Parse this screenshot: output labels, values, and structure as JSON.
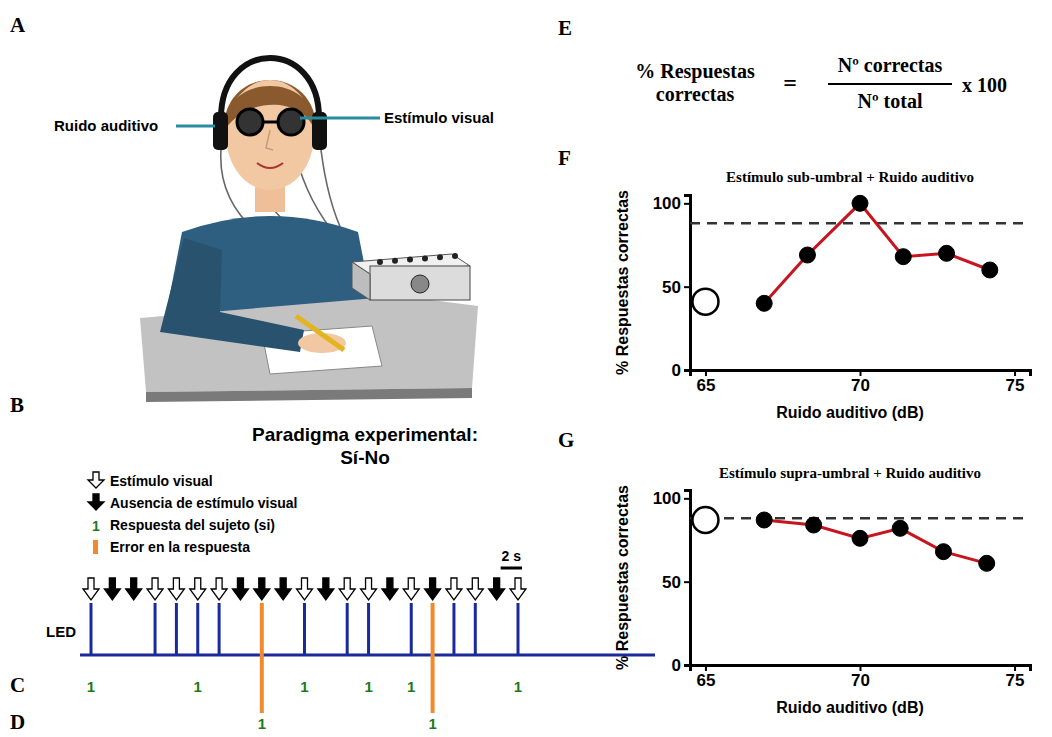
{
  "figure": {
    "letters": [
      "A",
      "B",
      "C",
      "D",
      "E",
      "F",
      "G"
    ],
    "illustration": {
      "noise_label": "Ruido auditivo",
      "stimulus_label": "Estímulo visual"
    },
    "paradigm": {
      "title": [
        "Paradigma experimental:",
        "Sí-No"
      ],
      "legend": {
        "stimulus": "Estímulo visual",
        "absence": "Ausencia de estímulo visual",
        "response_symbol": "1",
        "response": "Respuesta del sujeto (si)",
        "error": "Error en la respuesta"
      },
      "scale_bar": {
        "value": 2,
        "label": "2 s"
      },
      "trial_interval": 2,
      "led_label": "LED",
      "trials": [
        {
          "stimulus": true,
          "response": "1"
        },
        {
          "stimulus": false
        },
        {
          "stimulus": false
        },
        {
          "stimulus": true
        },
        {
          "stimulus": true
        },
        {
          "stimulus": true,
          "response": "1"
        },
        {
          "stimulus": true
        },
        {
          "stimulus": false
        },
        {
          "stimulus": false,
          "response": "1",
          "error": true
        },
        {
          "stimulus": false
        },
        {
          "stimulus": true,
          "response": "1"
        },
        {
          "stimulus": false
        },
        {
          "stimulus": true
        },
        {
          "stimulus": true,
          "response": "1"
        },
        {
          "stimulus": false
        },
        {
          "stimulus": true,
          "response": "1"
        },
        {
          "stimulus": false,
          "response": "1",
          "error": true
        },
        {
          "stimulus": true
        },
        {
          "stimulus": true
        },
        {
          "stimulus": false
        },
        {
          "stimulus": true,
          "response": "1"
        }
      ]
    },
    "formula": {
      "lhs": [
        "% Respuestas",
        "correctas"
      ],
      "equals": "=",
      "numerator": "Nº correctas",
      "denominator": "Nº total",
      "multiplier": "x 100"
    }
  },
  "chart_data": [
    {
      "type": "line",
      "title": "Estímulo sub-umbral + Ruido auditivo",
      "x_label": "Ruido auditivo (dB)",
      "y_label": "% Respuestas correctas",
      "x": [
        66.9,
        68.3,
        70.0,
        71.4,
        72.8,
        74.2
      ],
      "series": [
        {
          "color": "#c8141e",
          "marker": "circle",
          "line_style": "solid",
          "values": [
            40,
            69,
            100,
            68,
            70,
            60
          ]
        },
        {
          "x": [
            65
          ],
          "color": "#000000",
          "marker": "open-circle",
          "line_style": "none",
          "values": [
            41
          ]
        }
      ],
      "reference_line": 88,
      "xlim": [
        64.5,
        75.5
      ],
      "xticks": [
        65,
        70,
        75
      ],
      "ylim": [
        0,
        105
      ],
      "yticks": [
        0,
        50,
        100
      ],
      "grid": false
    },
    {
      "type": "line",
      "title": "Estímulo supra-umbral + Ruido auditivo",
      "x_label": "Ruido auditivo (dB)",
      "y_label": "% Respuestas correctas",
      "x": [
        66.9,
        68.5,
        70.0,
        71.3,
        72.7,
        74.1
      ],
      "series": [
        {
          "color": "#c8141e",
          "marker": "circle",
          "line_style": "solid",
          "values": [
            87,
            84,
            76,
            82,
            68,
            61
          ]
        },
        {
          "x": [
            65
          ],
          "color": "#000000",
          "marker": "open-circle",
          "line_style": "none",
          "values": [
            87
          ]
        }
      ],
      "reference_line": 88,
      "xlim": [
        64.5,
        75.5
      ],
      "xticks": [
        65,
        70,
        75
      ],
      "ylim": [
        0,
        105
      ],
      "yticks": [
        0,
        50,
        100
      ],
      "grid": false
    }
  ]
}
